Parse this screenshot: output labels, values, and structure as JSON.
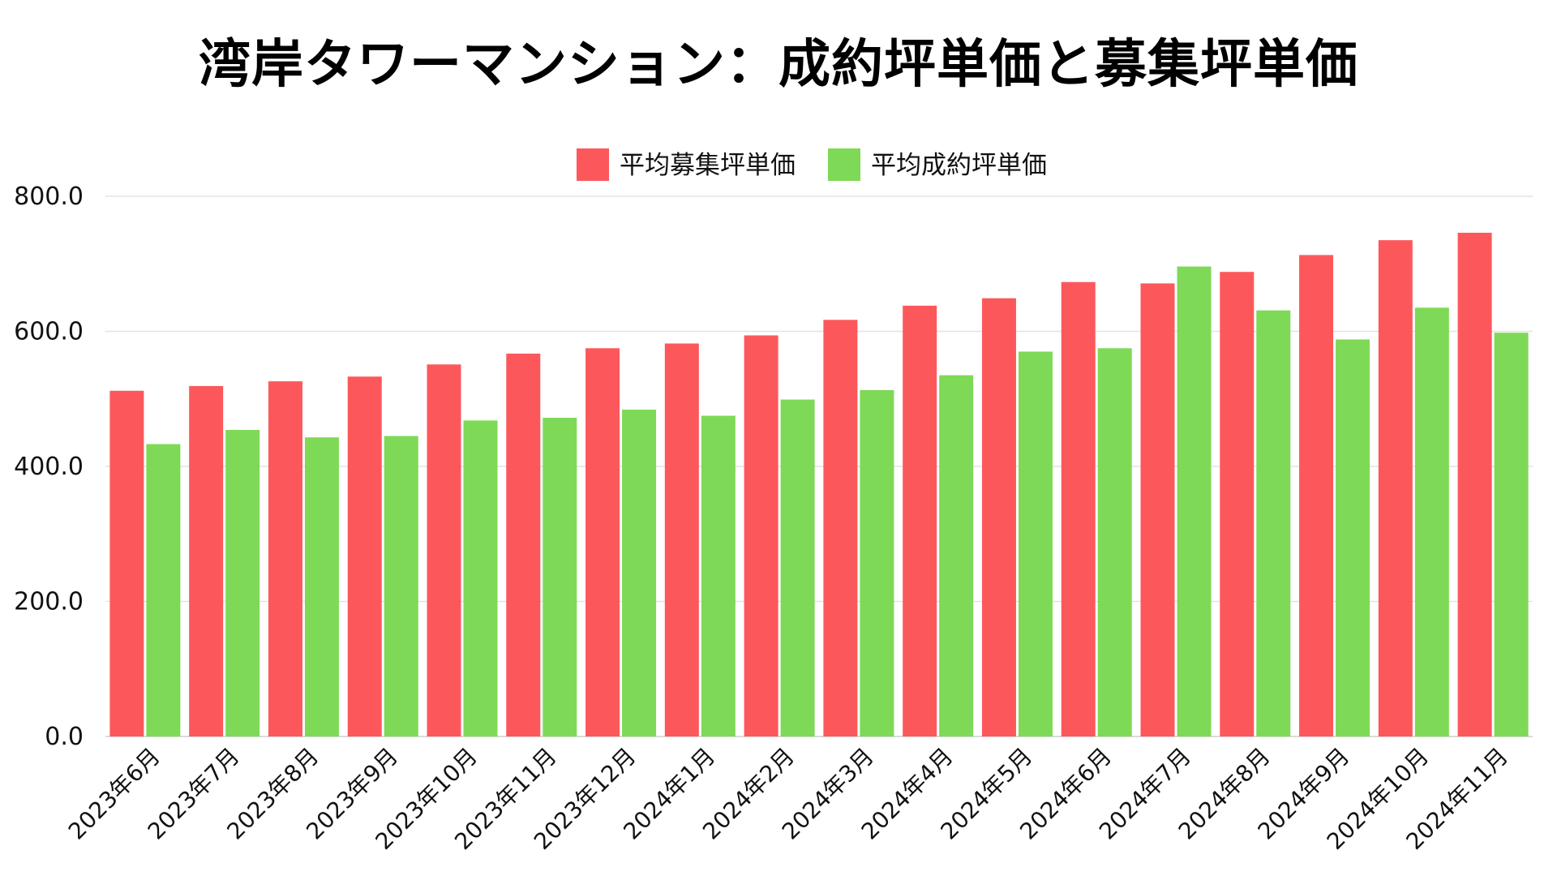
{
  "chart_data": {
    "type": "bar",
    "title": "湾岸タワーマンション：成約坪単価と募集坪単価",
    "xlabel": "",
    "ylabel": "",
    "ylim": [
      0,
      800
    ],
    "y_ticks": [
      "0.0",
      "200.0",
      "400.0",
      "600.0",
      "800.0"
    ],
    "grid": true,
    "legend_position": "top-center",
    "categories": [
      "2023年6月",
      "2023年7月",
      "2023年8月",
      "2023年9月",
      "2023年10月",
      "2023年11月",
      "2023年12月",
      "2024年1月",
      "2024年2月",
      "2024年3月",
      "2024年4月",
      "2024年5月",
      "2024年6月",
      "2024年7月",
      "2024年8月",
      "2024年9月",
      "2024年10月",
      "2024年11月"
    ],
    "series": [
      {
        "name": "平均募集坪単価",
        "color": "#fc585b",
        "values": [
          512,
          519,
          526,
          533,
          551,
          567,
          575,
          582,
          594,
          617,
          638,
          649,
          673,
          671,
          688,
          713,
          735,
          746
        ]
      },
      {
        "name": "平均成約坪単価",
        "color": "#7ed957",
        "values": [
          433,
          454,
          443,
          445,
          468,
          472,
          484,
          475,
          499,
          513,
          535,
          570,
          575,
          696,
          631,
          588,
          635,
          598
        ]
      }
    ]
  }
}
